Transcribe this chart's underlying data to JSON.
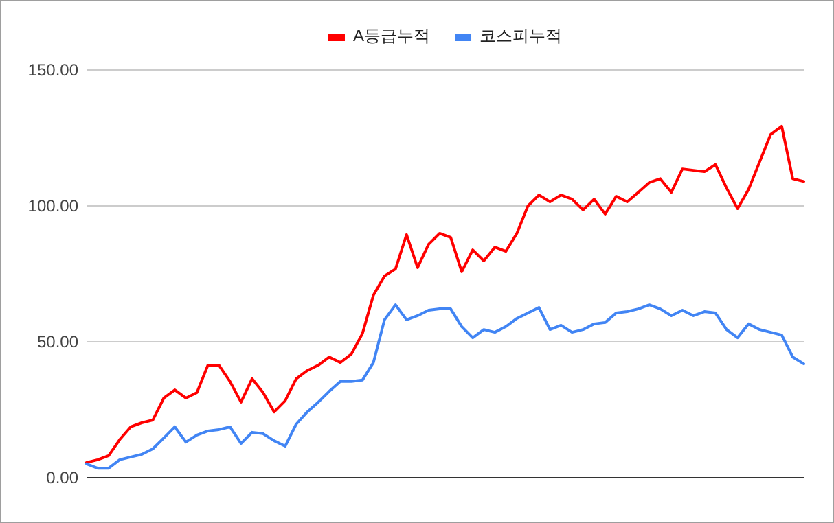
{
  "chart_data": {
    "type": "line",
    "categories": [
      null,
      null,
      null,
      null,
      null,
      null,
      null,
      null,
      null,
      null,
      null,
      null,
      null,
      null,
      null,
      null,
      null,
      null,
      null,
      null,
      null,
      null,
      null,
      null,
      null,
      null,
      null,
      null,
      null,
      null,
      null,
      null,
      null,
      null,
      null,
      null,
      null,
      null,
      null,
      null,
      null,
      null,
      null,
      null,
      null,
      null,
      null,
      null,
      null,
      null,
      null,
      null,
      null,
      null,
      null,
      null,
      null,
      null,
      null,
      null,
      null,
      null,
      null,
      null,
      null,
      null
    ],
    "series": [
      {
        "name": "A등급누적",
        "color": "#ff0000",
        "values": [
          5.6,
          6.6,
          8.1,
          14,
          18.7,
          20.2,
          21.2,
          29.3,
          32.3,
          29.3,
          31.3,
          41.4,
          41.4,
          35.4,
          27.8,
          36.4,
          31.3,
          24.2,
          28.3,
          36.4,
          39.4,
          41.4,
          44.4,
          42.4,
          45.5,
          53,
          67.2,
          74.2,
          76.8,
          89.4,
          77.3,
          85.9,
          89.9,
          88.4,
          75.8,
          83.8,
          79.8,
          84.8,
          83.3,
          89.9,
          100,
          104,
          101.5,
          104,
          102.5,
          98.5,
          102.5,
          97,
          103.5,
          101.5,
          105,
          108.6,
          110,
          105,
          113.6,
          113.1,
          112.6,
          115.2,
          106.6,
          99,
          106.1,
          116.2,
          126.3,
          129.3,
          110,
          109
        ]
      },
      {
        "name": "코스피누적",
        "color": "#4285f4",
        "values": [
          5.1,
          3.5,
          3.5,
          6.6,
          7.6,
          8.6,
          10.6,
          14.6,
          18.7,
          13.1,
          15.7,
          17.2,
          17.7,
          18.7,
          12.6,
          16.7,
          16.2,
          13.6,
          11.6,
          19.7,
          24.2,
          27.8,
          31.8,
          35.4,
          35.4,
          35.9,
          42.4,
          58.1,
          63.6,
          58.1,
          59.6,
          61.6,
          62.1,
          62.1,
          55.6,
          51.5,
          54.5,
          53.5,
          55.6,
          58.6,
          60.6,
          62.6,
          54.5,
          56.1,
          53.5,
          54.5,
          56.6,
          57.1,
          60.6,
          61.1,
          62.1,
          63.6,
          62.1,
          59.6,
          61.6,
          59.6,
          61.1,
          60.6,
          54.5,
          51.5,
          56.6,
          54.5,
          53.5,
          52.5,
          44.4,
          41.9
        ]
      }
    ],
    "ylim": [
      0,
      150
    ],
    "yticks": [
      {
        "value": 0,
        "label": "0.00"
      },
      {
        "value": 50,
        "label": "50.00"
      },
      {
        "value": 100,
        "label": "100.00"
      },
      {
        "value": 150,
        "label": "150.00"
      }
    ],
    "grid": "y",
    "legend": "top",
    "marker": "none",
    "line_style": "solid"
  }
}
